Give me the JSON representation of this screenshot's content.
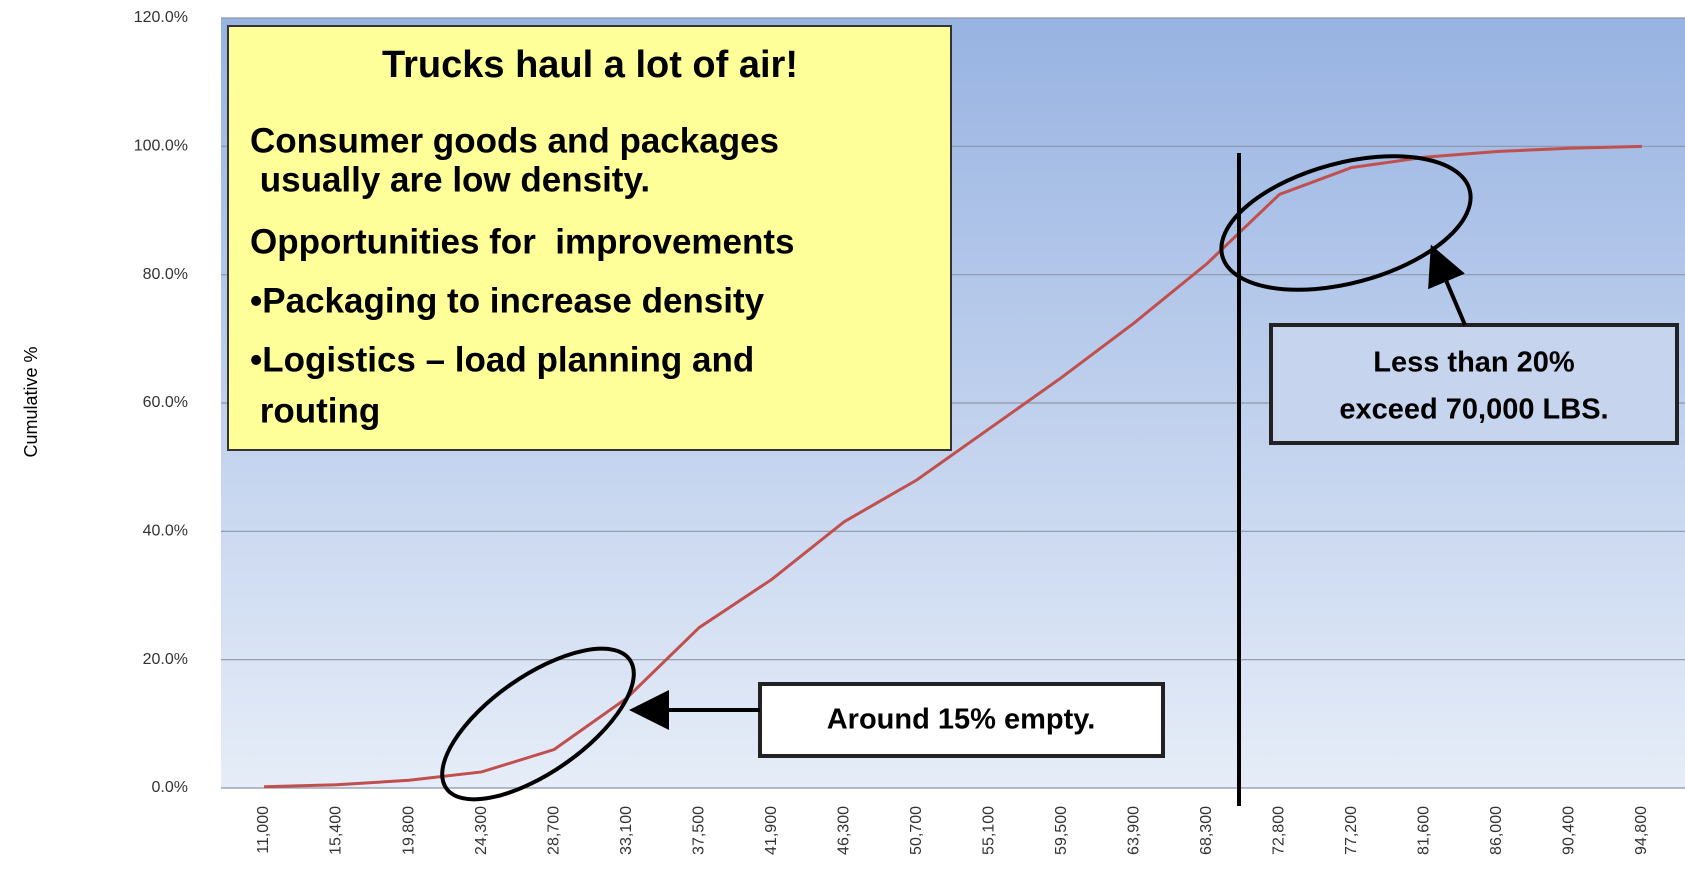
{
  "chart_data": {
    "type": "line",
    "y_label": "Cumulative %",
    "categories": [
      "11,000",
      "15,400",
      "19,800",
      "24,300",
      "28,700",
      "33,100",
      "37,500",
      "41,900",
      "46,300",
      "50,700",
      "55,100",
      "59,500",
      "63,900",
      "68,300",
      "72,800",
      "77,200",
      "81,600",
      "86,000",
      "90,400",
      "94,800"
    ],
    "series": [
      {
        "name": "Cumulative %",
        "color": "#c0504d",
        "values": [
          0.2,
          0.5,
          1.2,
          2.5,
          6,
          14,
          25,
          32.5,
          41.5,
          48,
          56,
          64,
          72.5,
          81.7,
          92.5,
          96.7,
          98.3,
          99.2,
          99.7,
          100
        ]
      }
    ],
    "ylim": [
      0,
      120
    ],
    "yticks": [
      {
        "value": 0,
        "label": "0.0%"
      },
      {
        "value": 20,
        "label": "20.0%"
      },
      {
        "value": 40,
        "label": "40.0%"
      },
      {
        "value": 60,
        "label": "60.0%"
      },
      {
        "value": 80,
        "label": "80.0%"
      },
      {
        "value": 100,
        "label": "100.0%"
      },
      {
        "value": 120,
        "label": "120.0%"
      }
    ],
    "grid": true,
    "info_box": {
      "title": "Trucks haul a lot of air!",
      "lines": [
        "Consumer goods and packages",
        " usually are low density.",
        "Opportunities for  improvements",
        "•Packaging to increase density",
        "•Logistics – load planning and",
        " routing"
      ]
    },
    "callouts": [
      [
        "Less than 20%",
        "exceed 70,000 LBS."
      ],
      [
        "Around 15% empty."
      ]
    ]
  }
}
